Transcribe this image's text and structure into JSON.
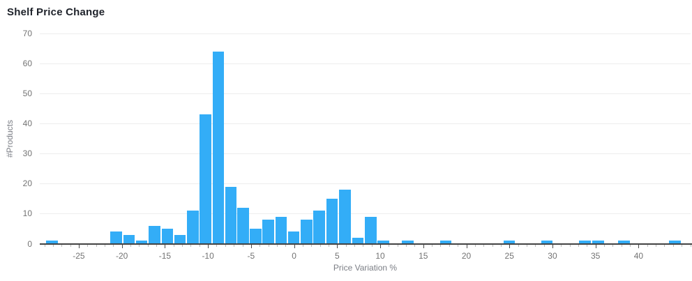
{
  "chart_data": {
    "type": "bar",
    "subtype": "histogram",
    "title": "Shelf Price Change",
    "xlabel": "Price Variation %",
    "ylabel": "#Products",
    "legend": false,
    "grid": "horizontal",
    "bar_color": "#33adf7",
    "xlim": [
      -29.53,
      46.04
    ],
    "ylim": [
      0,
      70
    ],
    "bin_width": 1.5,
    "x_ticks": [
      -25,
      -20,
      -15,
      -10,
      -5,
      0,
      5,
      10,
      15,
      20,
      25,
      30,
      35,
      40
    ],
    "y_ticks": [
      0,
      10,
      20,
      30,
      40,
      50,
      60,
      70
    ],
    "bars": [
      {
        "x": -28.1,
        "count": 1
      },
      {
        "x": -20.65,
        "count": 4
      },
      {
        "x": -19.15,
        "count": 3
      },
      {
        "x": -17.7,
        "count": 1
      },
      {
        "x": -16.2,
        "count": 6
      },
      {
        "x": -14.7,
        "count": 5
      },
      {
        "x": -13.25,
        "count": 3
      },
      {
        "x": -11.75,
        "count": 11
      },
      {
        "x": -10.3,
        "count": 43
      },
      {
        "x": -8.8,
        "count": 64
      },
      {
        "x": -7.35,
        "count": 19
      },
      {
        "x": -5.9,
        "count": 12
      },
      {
        "x": -4.45,
        "count": 5
      },
      {
        "x": -3.0,
        "count": 8
      },
      {
        "x": -1.5,
        "count": 9
      },
      {
        "x": -0.05,
        "count": 4
      },
      {
        "x": 1.45,
        "count": 8
      },
      {
        "x": 2.9,
        "count": 11
      },
      {
        "x": 4.4,
        "count": 15
      },
      {
        "x": 5.9,
        "count": 18
      },
      {
        "x": 7.4,
        "count": 2
      },
      {
        "x": 8.9,
        "count": 9
      },
      {
        "x": 10.35,
        "count": 1
      },
      {
        "x": 13.2,
        "count": 1
      },
      {
        "x": 17.6,
        "count": 1
      },
      {
        "x": 25.0,
        "count": 1
      },
      {
        "x": 29.35,
        "count": 1
      },
      {
        "x": 33.75,
        "count": 1
      },
      {
        "x": 35.3,
        "count": 1
      },
      {
        "x": 38.3,
        "count": 1
      },
      {
        "x": 44.2,
        "count": 1
      }
    ]
  }
}
